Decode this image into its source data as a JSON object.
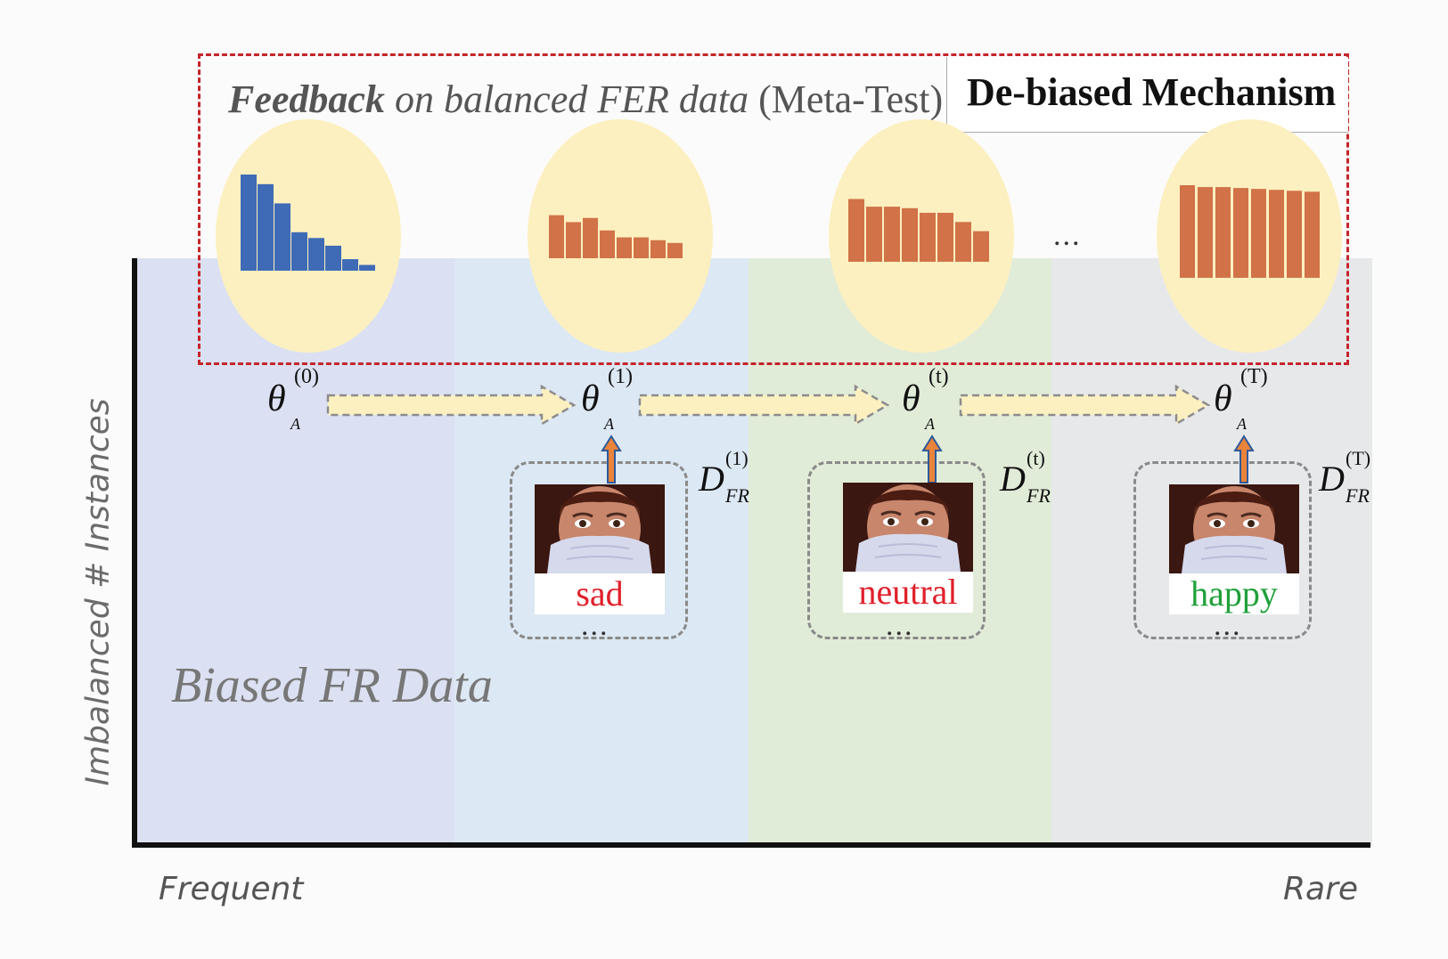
{
  "header": {
    "feedback_bold": "Feedback",
    "feedback_mid": "on balanced FER data",
    "feedback_tail": "(Meta-Test)",
    "mechanism_title": "De-biased Mechanism"
  },
  "axes": {
    "y_label": "Imbalanced # Instances",
    "x_left": "Frequent",
    "x_right": "Rare"
  },
  "region_label": "Biased FR Data",
  "theta": {
    "symbol": "θ",
    "subscript": "A",
    "states": [
      {
        "sup": "(0)"
      },
      {
        "sup": "(1)"
      },
      {
        "sup": "(t)"
      },
      {
        "sup": "(T)"
      }
    ]
  },
  "datasets": {
    "symbol": "D",
    "subscript": "FR",
    "items": [
      {
        "sup": "(1)",
        "emotion": "sad",
        "color": "#e0202a"
      },
      {
        "sup": "(t)",
        "emotion": "neutral",
        "color": "#e0202a"
      },
      {
        "sup": "(T)",
        "emotion": "happy",
        "color": "#1fa03a"
      }
    ]
  },
  "ellipsis": "...",
  "distributions": [
    {
      "color": "#3f6bb6",
      "values": [
        100,
        90,
        70,
        40,
        34,
        26,
        12,
        6
      ]
    },
    {
      "color": "#d17248",
      "values": [
        62,
        52,
        58,
        40,
        30,
        30,
        26,
        22
      ]
    },
    {
      "color": "#d17248",
      "values": [
        82,
        72,
        72,
        70,
        64,
        64,
        52,
        40
      ]
    },
    {
      "color": "#d17248",
      "values": [
        100,
        98,
        98,
        97,
        96,
        95,
        94,
        93
      ]
    }
  ],
  "colors": {
    "dashed_border": "#c4252b",
    "flow_arrow_fill": "#fdf0c0",
    "up_arrow": "#e9843a",
    "up_arrow_outline": "#2f5a9a"
  }
}
